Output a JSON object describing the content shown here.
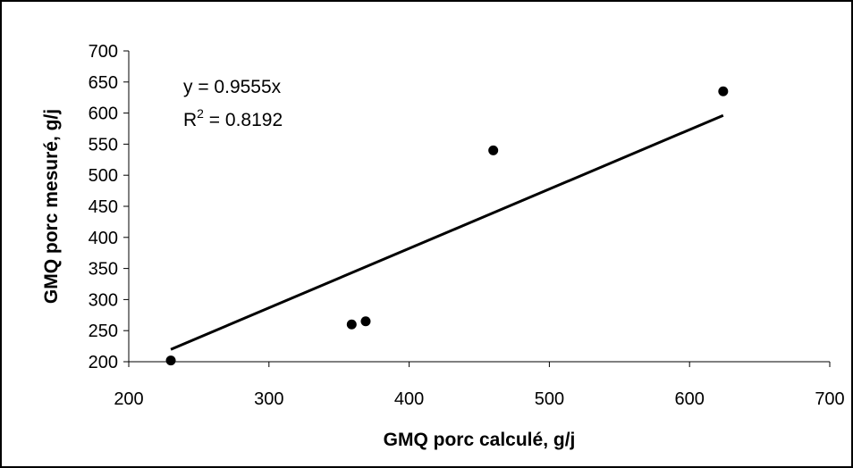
{
  "chart_data": {
    "type": "scatter",
    "title": "",
    "xlabel": "GMQ porc calculé, g/j",
    "ylabel": "GMQ porc mesuré, g/j",
    "xlim": [
      200,
      700
    ],
    "ylim": [
      200,
      700
    ],
    "x_ticks": [
      200,
      300,
      400,
      500,
      600,
      700
    ],
    "y_ticks": [
      200,
      250,
      300,
      350,
      400,
      450,
      500,
      550,
      600,
      650,
      700
    ],
    "grid": false,
    "legend": "none",
    "series": [
      {
        "points": [
          {
            "x": 230,
            "y": 202
          },
          {
            "x": 359,
            "y": 260
          },
          {
            "x": 369,
            "y": 265
          },
          {
            "x": 460,
            "y": 540
          },
          {
            "x": 624,
            "y": 635
          }
        ]
      }
    ],
    "trendline": {
      "slope": 0.9555,
      "x_range": [
        230,
        624
      ],
      "equation_label": "y = 0.9555x",
      "r2_prefix": "R",
      "r2_exponent": "2",
      "r2_value": " = 0.8192"
    },
    "colors": {
      "marker": "#000000",
      "line": "#000000"
    }
  }
}
